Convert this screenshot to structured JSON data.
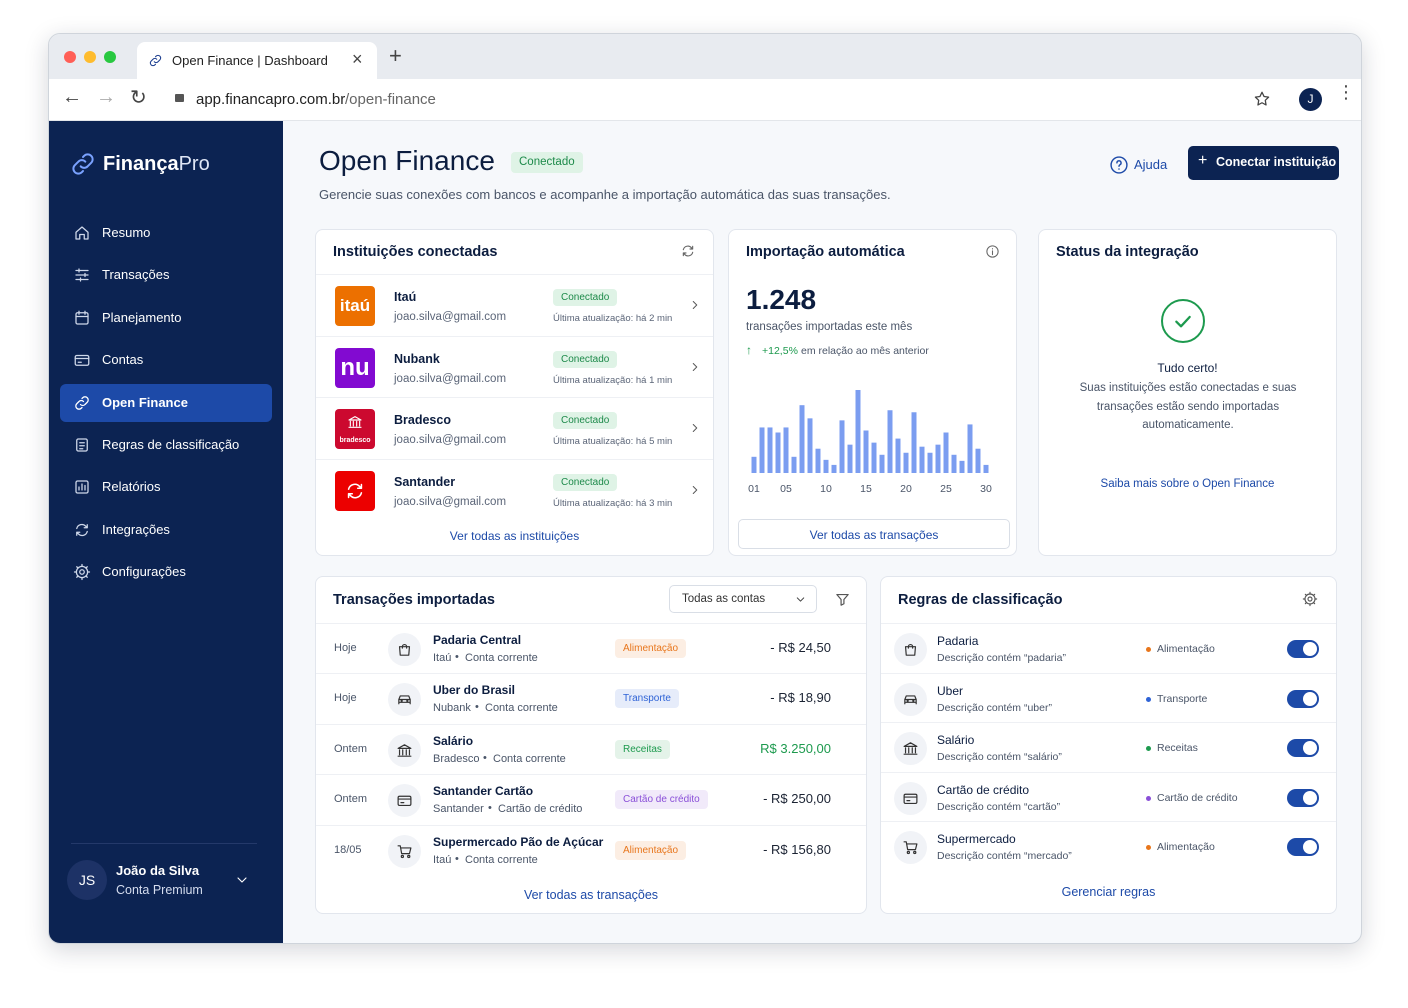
{
  "browser": {
    "tab_title": "Open Finance | Dashboard",
    "url_domain": "app.financapro.com.br",
    "url_path": "/open-finance",
    "avatar": "J"
  },
  "sidebar": {
    "brand_bold": "Finança",
    "brand_light": "Pro",
    "active": 4,
    "nav": [
      "Resumo",
      "Transações",
      "Planejamento",
      "Contas",
      "Open Finance",
      "Regras de classificação",
      "Relatórios",
      "Integrações",
      "Configurações"
    ],
    "user": {
      "initials": "JS",
      "name": "João da Silva",
      "plan": "Conta Premium"
    }
  },
  "header": {
    "title": "Open Finance",
    "badge": "Conectado",
    "subtitle": "Gerencie suas conexões com bancos e acompanhe a importação automática das suas transações.",
    "help": "Ajuda",
    "cta": "Conectar instituição"
  },
  "institutions": {
    "title": "Instituições conectadas",
    "link": "Ver todas as instituições",
    "items": [
      {
        "name": "Itaú",
        "email": "joao.silva@gmail.com",
        "status": "Conectado",
        "updated": "Última atualização: há 2 min",
        "logo_text": "itaú",
        "logo_color": "#ec7000"
      },
      {
        "name": "Nubank",
        "email": "joao.silva@gmail.com",
        "status": "Conectado",
        "updated": "Última atualização: há 1 min",
        "logo_text": "nu",
        "logo_color": "#820ad1"
      },
      {
        "name": "Bradesco",
        "email": "joao.silva@gmail.com",
        "status": "Conectado",
        "updated": "Última atualização: há 5 min",
        "logo_text": "bradesco",
        "logo_color": "#cc092f"
      },
      {
        "name": "Santander",
        "email": "joao.silva@gmail.com",
        "status": "Conectado",
        "updated": "Última atualização: há 3 min",
        "logo_color": "#ec0000"
      }
    ]
  },
  "import": {
    "title": "Importação automática",
    "total": "1.248",
    "caption": "transações importadas este mês",
    "change": "+12,5%",
    "change_text": "em relação ao mês anterior",
    "link": "Ver todas as transações",
    "chart": {
      "color": "#7b9df0",
      "labels": [
        "01",
        "05",
        "10",
        "15",
        "20",
        "25",
        "30"
      ],
      "values": [
        16,
        45,
        45,
        40,
        45,
        16,
        67,
        54,
        24,
        13,
        8,
        52,
        28,
        82,
        42,
        30,
        18,
        62,
        34,
        20,
        60,
        26,
        20,
        28,
        40,
        18,
        12,
        48,
        24,
        8
      ]
    }
  },
  "status": {
    "title": "Status da integração",
    "heading": "Tudo certo!",
    "text": "Suas instituições estão conectadas e suas transações estão sendo importadas automaticamente.",
    "link": "Saiba mais sobre o Open Finance"
  },
  "transactions": {
    "title": "Transações importadas",
    "filter": "Todas as contas",
    "link": "Ver todas as transações",
    "rows": [
      {
        "date": "Hoje",
        "name": "Padaria Central",
        "bank": "Itaú",
        "account": "Conta corrente",
        "category": "Alimentação",
        "category_color": "#e8761c",
        "amount": "- R$ 24,50"
      },
      {
        "date": "Hoje",
        "name": "Uber do Brasil",
        "bank": "Nubank",
        "account": "Conta corrente",
        "category": "Transporte",
        "category_color": "#2f63d6",
        "amount": "- R$ 18,90"
      },
      {
        "date": "Ontem",
        "name": "Salário",
        "bank": "Bradesco",
        "account": "Conta corrente",
        "category": "Receitas",
        "category_color": "#1d9a4e",
        "amount": "R$ 3.250,00",
        "amount_color": "#1d9a4e"
      },
      {
        "date": "Ontem",
        "name": "Santander Cartão",
        "bank": "Santander",
        "account": "Cartão de crédito",
        "category": "Cartão de crédito",
        "category_color": "#8a4fd8",
        "amount": "- R$ 250,00"
      },
      {
        "date": "18/05",
        "name": "Supermercado Pão de Açúcar",
        "bank": "Itaú",
        "account": "Conta corrente",
        "category": "Alimentação",
        "category_color": "#e8761c",
        "amount": "- R$ 156,80"
      }
    ]
  },
  "rules": {
    "title": "Regras de classificação",
    "link": "Gerenciar regras",
    "rows": [
      {
        "name": "Padaria",
        "description": "Descrição contém “padaria”",
        "category": "Alimentação",
        "category_color": "#e8761c",
        "enabled": true
      },
      {
        "name": "Uber",
        "description": "Descrição contém “uber”",
        "category": "Transporte",
        "category_color": "#2f63d6",
        "enabled": true
      },
      {
        "name": "Salário",
        "description": "Descrição contém “salário”",
        "category": "Receitas",
        "category_color": "#1d9a4e",
        "enabled": true
      },
      {
        "name": "Cartão de crédito",
        "description": "Descrição contém “cartão”",
        "category": "Cartão de crédito",
        "category_color": "#8a4fd8",
        "enabled": true
      },
      {
        "name": "Supermercado",
        "description": "Descrição contém “mercado”",
        "category": "Alimentação",
        "category_color": "#e8761c",
        "enabled": true
      }
    ]
  }
}
